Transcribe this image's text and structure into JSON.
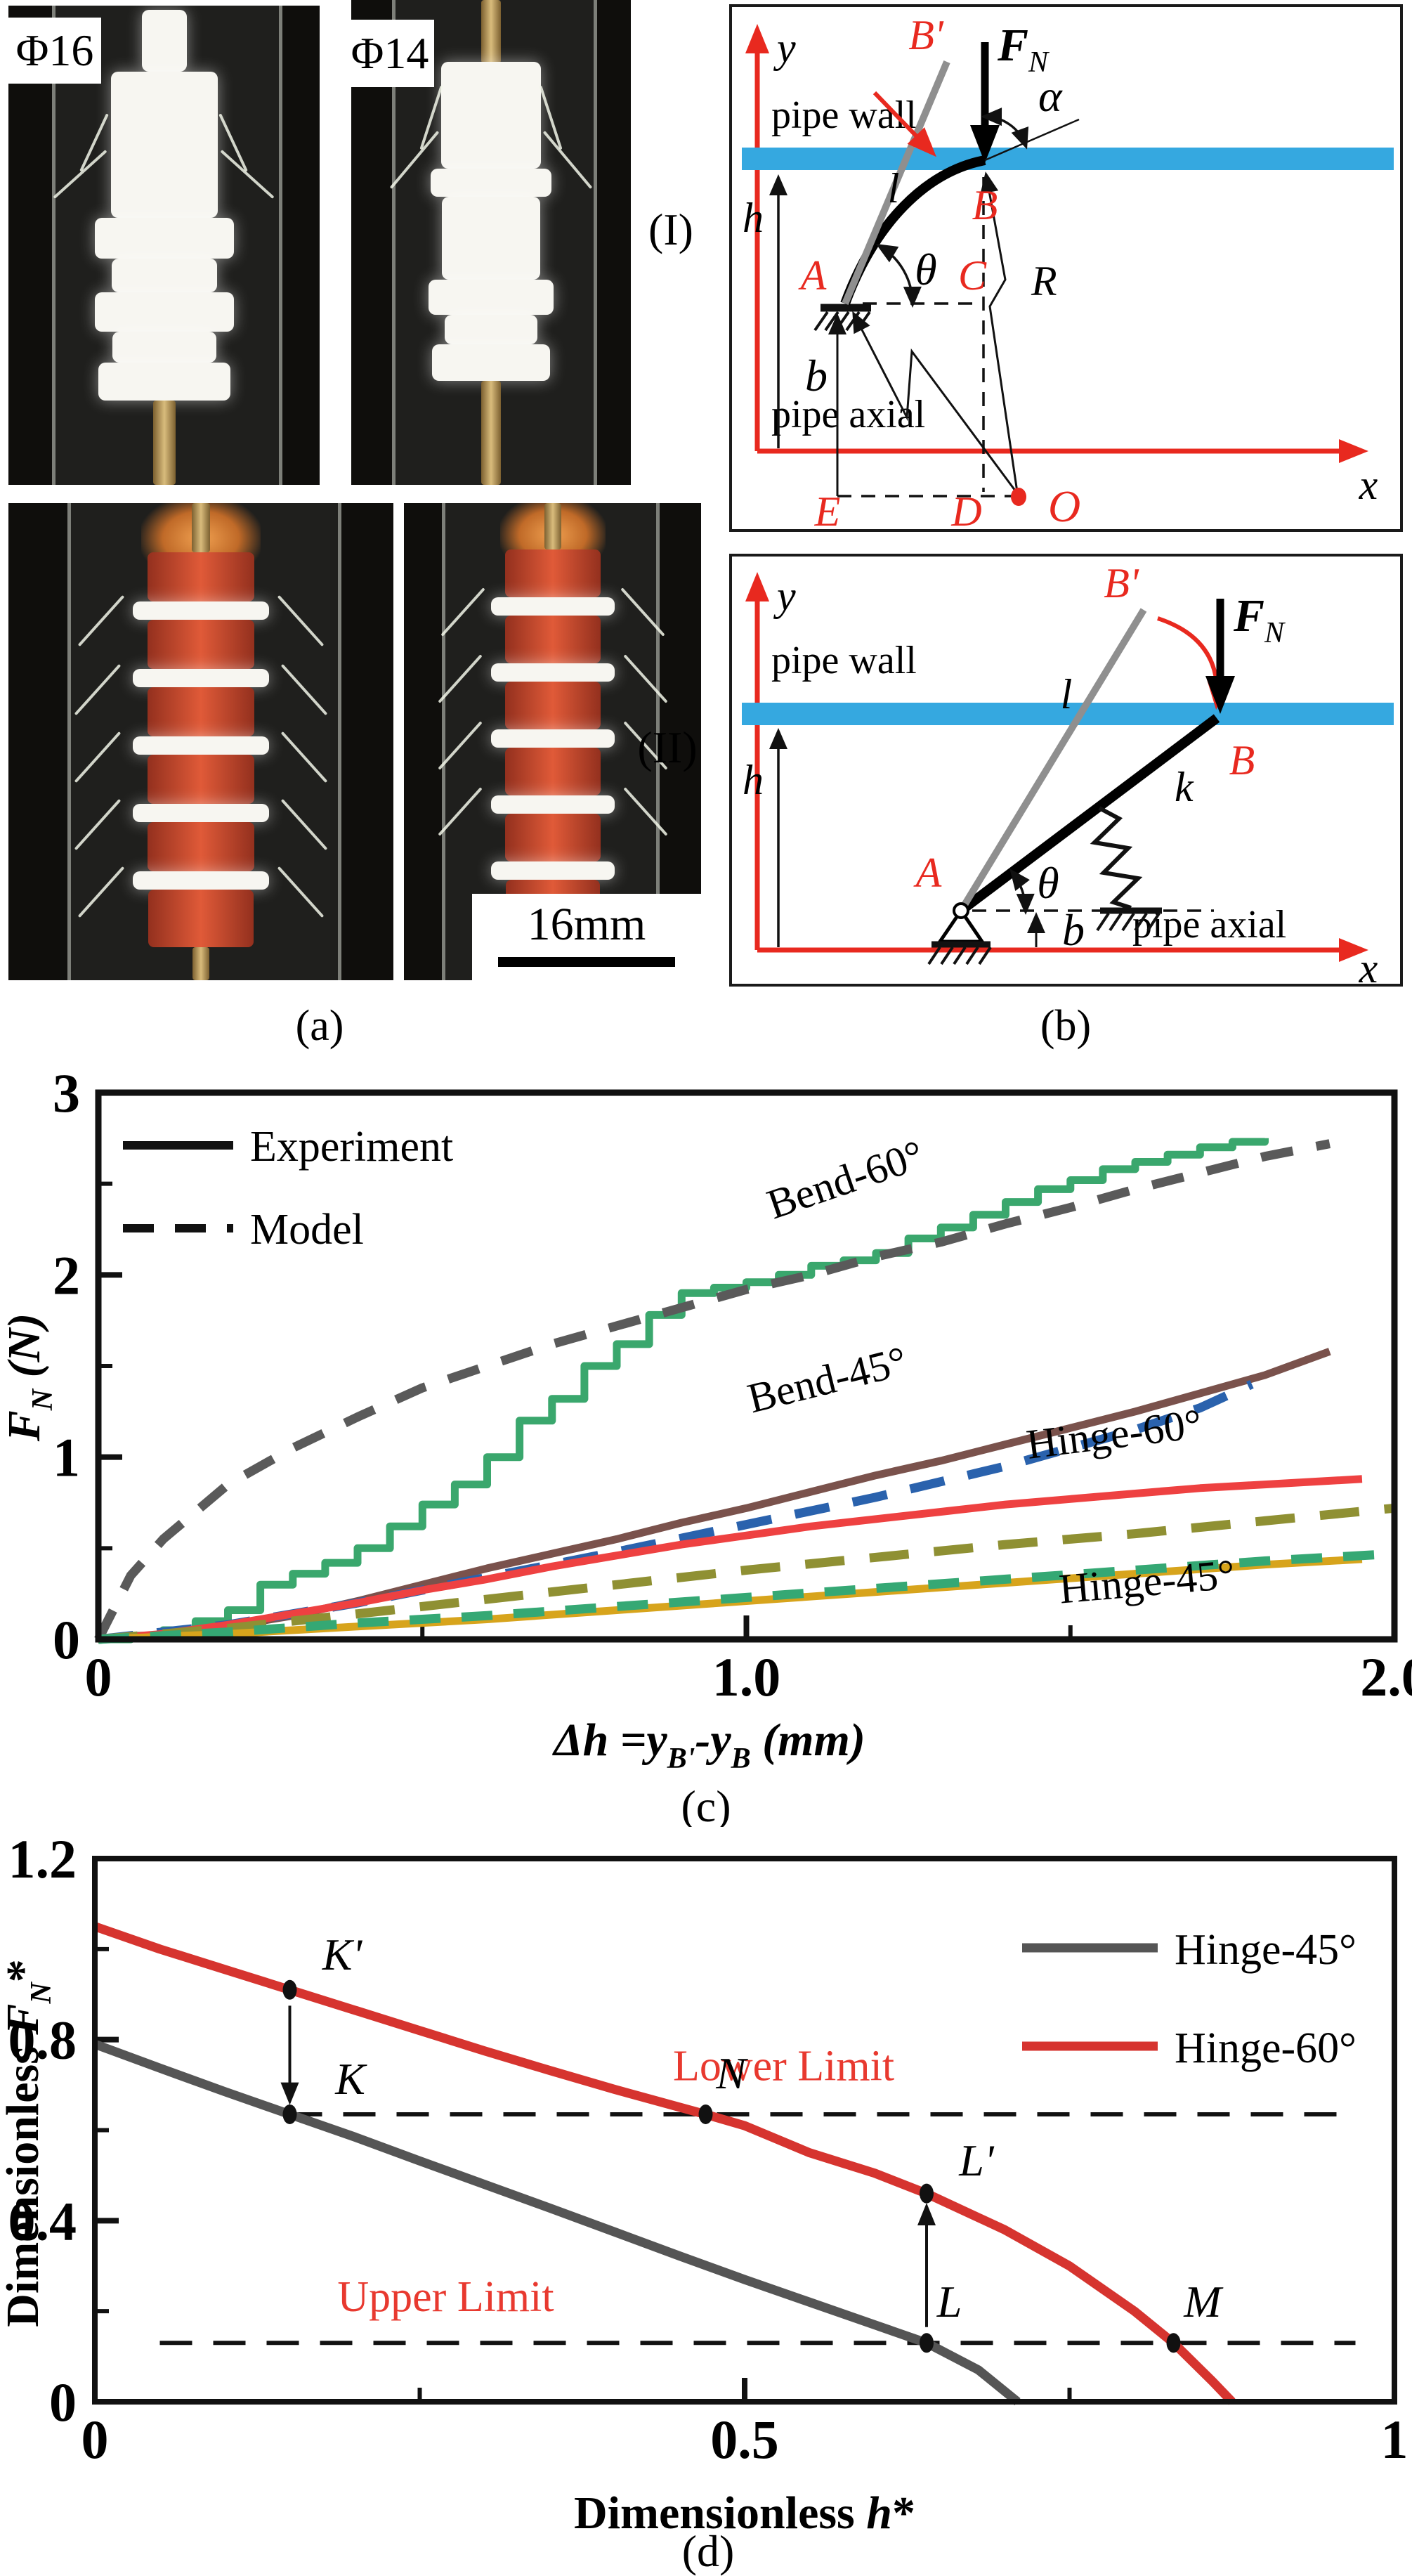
{
  "panel_a": {
    "phi16": "Φ16",
    "phi14": "Φ14",
    "scale_bar": "16mm",
    "caption": "(a)"
  },
  "panel_b": {
    "caption": "(b)",
    "I": {
      "tag": "(I)",
      "pipe_wall": "pipe wall",
      "pipe_axial": "pipe axial",
      "x": "x",
      "y": "y",
      "h": "h",
      "b": "b",
      "l": "l",
      "theta": "θ",
      "alpha": "α",
      "A": "A",
      "B": "B",
      "Bp": "B'",
      "C": "C",
      "D": "D",
      "E": "E",
      "O": "O",
      "R": "R",
      "F": "F",
      "FN": "N"
    },
    "II": {
      "tag": "(II)",
      "pipe_wall": "pipe wall",
      "pipe_axial": "pipe axial",
      "x": "x",
      "y": "y",
      "h": "h",
      "b": "b",
      "l": "l",
      "theta": "θ",
      "k": "k",
      "A": "A",
      "B": "B",
      "Bp": "B'",
      "F": "F",
      "FN": "N"
    },
    "colors": {
      "pipe_wall_blue": "#35a8e0",
      "accent_red": "#e8291f"
    }
  },
  "chart_data": [
    {
      "id": "c",
      "type": "line",
      "caption": "(c)",
      "xlabel": "Δh = yB' - yB (mm)",
      "xlabel_parts": [
        "Δh =",
        "y",
        "B'",
        "-y",
        "B",
        " (mm)"
      ],
      "ylabel": "FN (N)",
      "ylabel_parts": [
        "F",
        "N",
        " (N)"
      ],
      "xlim": [
        0,
        2
      ],
      "ylim": [
        0,
        3
      ],
      "grid": false,
      "legend_position": "top-left",
      "axes": {
        "x_ticks": [
          {
            "v": 0,
            "label": "0"
          },
          {
            "v": 1,
            "label": "1.0"
          },
          {
            "v": 2,
            "label": "2.0"
          }
        ],
        "x_minor": [
          0.5,
          1.5
        ],
        "y_ticks": [
          {
            "v": 0,
            "label": "0"
          },
          {
            "v": 1,
            "label": "1"
          },
          {
            "v": 2,
            "label": "2"
          },
          {
            "v": 3,
            "label": "3"
          }
        ],
        "y_minor": [
          0.5,
          1.5,
          2.5
        ]
      },
      "legend": [
        {
          "label": "Experiment",
          "style": "solid"
        },
        {
          "label": "Model",
          "style": "dashed"
        }
      ],
      "series": [
        {
          "name": "Bend-60-experiment",
          "color": "#3aa76d",
          "width": 11,
          "step": true,
          "points": [
            [
              0,
              0
            ],
            [
              0.05,
              0.02
            ],
            [
              0.1,
              0.05
            ],
            [
              0.15,
              0.1
            ],
            [
              0.2,
              0.16
            ],
            [
              0.25,
              0.3
            ],
            [
              0.3,
              0.36
            ],
            [
              0.35,
              0.42
            ],
            [
              0.4,
              0.5
            ],
            [
              0.45,
              0.62
            ],
            [
              0.5,
              0.74
            ],
            [
              0.55,
              0.85
            ],
            [
              0.6,
              1.0
            ],
            [
              0.65,
              1.2
            ],
            [
              0.7,
              1.32
            ],
            [
              0.75,
              1.5
            ],
            [
              0.8,
              1.62
            ],
            [
              0.85,
              1.78
            ],
            [
              0.9,
              1.9
            ],
            [
              0.95,
              1.93
            ],
            [
              1.0,
              1.96
            ],
            [
              1.05,
              2.0
            ],
            [
              1.1,
              2.05
            ],
            [
              1.15,
              2.08
            ],
            [
              1.2,
              2.12
            ],
            [
              1.25,
              2.2
            ],
            [
              1.3,
              2.26
            ],
            [
              1.35,
              2.33
            ],
            [
              1.4,
              2.4
            ],
            [
              1.45,
              2.47
            ],
            [
              1.5,
              2.52
            ],
            [
              1.55,
              2.58
            ],
            [
              1.6,
              2.62
            ],
            [
              1.65,
              2.66
            ],
            [
              1.7,
              2.7
            ],
            [
              1.75,
              2.73
            ],
            [
              1.8,
              2.75
            ]
          ]
        },
        {
          "name": "Bend-60-model",
          "color": "#5a5a5a",
          "width": 13,
          "dash": "46,34",
          "points": [
            [
              0,
              0
            ],
            [
              0.05,
              0.35
            ],
            [
              0.1,
              0.55
            ],
            [
              0.2,
              0.85
            ],
            [
              0.3,
              1.05
            ],
            [
              0.4,
              1.22
            ],
            [
              0.5,
              1.38
            ],
            [
              0.6,
              1.5
            ],
            [
              0.7,
              1.62
            ],
            [
              0.8,
              1.72
            ],
            [
              0.9,
              1.82
            ],
            [
              1.0,
              1.92
            ],
            [
              1.1,
              2.0
            ],
            [
              1.2,
              2.1
            ],
            [
              1.3,
              2.18
            ],
            [
              1.4,
              2.28
            ],
            [
              1.5,
              2.37
            ],
            [
              1.6,
              2.47
            ],
            [
              1.7,
              2.56
            ],
            [
              1.8,
              2.65
            ],
            [
              1.9,
              2.72
            ]
          ]
        },
        {
          "name": "Bend-45-experiment",
          "color": "#7a524c",
          "width": 11,
          "points": [
            [
              0,
              0
            ],
            [
              0.1,
              0.02
            ],
            [
              0.2,
              0.07
            ],
            [
              0.3,
              0.13
            ],
            [
              0.4,
              0.21
            ],
            [
              0.5,
              0.3
            ],
            [
              0.6,
              0.39
            ],
            [
              0.7,
              0.47
            ],
            [
              0.8,
              0.55
            ],
            [
              0.9,
              0.64
            ],
            [
              1.0,
              0.72
            ],
            [
              1.1,
              0.81
            ],
            [
              1.2,
              0.9
            ],
            [
              1.3,
              0.98
            ],
            [
              1.4,
              1.07
            ],
            [
              1.5,
              1.16
            ],
            [
              1.6,
              1.25
            ],
            [
              1.7,
              1.35
            ],
            [
              1.8,
              1.45
            ],
            [
              1.9,
              1.58
            ]
          ]
        },
        {
          "name": "Bend-45-model",
          "color": "#2a62ad",
          "width": 13,
          "dash": "50,34",
          "points": [
            [
              0,
              0
            ],
            [
              0.2,
              0.08
            ],
            [
              0.4,
              0.2
            ],
            [
              0.6,
              0.34
            ],
            [
              0.8,
              0.48
            ],
            [
              1.0,
              0.63
            ],
            [
              1.2,
              0.78
            ],
            [
              1.4,
              0.95
            ],
            [
              1.6,
              1.15
            ],
            [
              1.7,
              1.27
            ],
            [
              1.78,
              1.4
            ]
          ]
        },
        {
          "name": "Hinge-60-experiment",
          "color": "#ee4141",
          "width": 11,
          "points": [
            [
              0,
              0
            ],
            [
              0.1,
              0.03
            ],
            [
              0.2,
              0.08
            ],
            [
              0.3,
              0.14
            ],
            [
              0.4,
              0.2
            ],
            [
              0.5,
              0.27
            ],
            [
              0.6,
              0.33
            ],
            [
              0.7,
              0.4
            ],
            [
              0.8,
              0.46
            ],
            [
              0.9,
              0.52
            ],
            [
              1.0,
              0.57
            ],
            [
              1.1,
              0.62
            ],
            [
              1.2,
              0.66
            ],
            [
              1.3,
              0.7
            ],
            [
              1.4,
              0.74
            ],
            [
              1.5,
              0.77
            ],
            [
              1.6,
              0.8
            ],
            [
              1.7,
              0.83
            ],
            [
              1.8,
              0.85
            ],
            [
              1.9,
              0.87
            ],
            [
              1.95,
              0.88
            ]
          ]
        },
        {
          "name": "Hinge-60-model",
          "color": "#8f9033",
          "width": 13,
          "dash": "56,36",
          "points": [
            [
              0,
              0
            ],
            [
              0.2,
              0.06
            ],
            [
              0.4,
              0.14
            ],
            [
              0.6,
              0.22
            ],
            [
              0.8,
              0.3
            ],
            [
              1.0,
              0.38
            ],
            [
              1.2,
              0.45
            ],
            [
              1.4,
              0.52
            ],
            [
              1.6,
              0.58
            ],
            [
              1.8,
              0.65
            ],
            [
              2.0,
              0.72
            ]
          ]
        },
        {
          "name": "Hinge-45-experiment",
          "color": "#d7a41c",
          "width": 11,
          "points": [
            [
              0,
              0
            ],
            [
              0.2,
              0.03
            ],
            [
              0.4,
              0.07
            ],
            [
              0.6,
              0.11
            ],
            [
              0.8,
              0.16
            ],
            [
              1.0,
              0.21
            ],
            [
              1.2,
              0.26
            ],
            [
              1.4,
              0.31
            ],
            [
              1.6,
              0.36
            ],
            [
              1.8,
              0.41
            ],
            [
              1.95,
              0.44
            ]
          ]
        },
        {
          "name": "Hinge-45-model",
          "color": "#35a874",
          "width": 13,
          "dash": "44,30",
          "points": [
            [
              0,
              0
            ],
            [
              0.2,
              0.04
            ],
            [
              0.4,
              0.09
            ],
            [
              0.6,
              0.13
            ],
            [
              0.8,
              0.18
            ],
            [
              1.0,
              0.23
            ],
            [
              1.2,
              0.28
            ],
            [
              1.4,
              0.33
            ],
            [
              1.6,
              0.38
            ],
            [
              1.8,
              0.43
            ],
            [
              2.0,
              0.47
            ]
          ]
        }
      ],
      "curve_labels": [
        {
          "text": "Bend-60°",
          "x": 1.16,
          "y": 2.45,
          "rot": -19
        },
        {
          "text": "Bend-45°",
          "x": 1.13,
          "y": 1.35,
          "rot": -14
        },
        {
          "text": "Hinge-60°",
          "x": 1.57,
          "y": 1.05,
          "rot": -7
        },
        {
          "text": "Hinge-45°",
          "x": 1.62,
          "y": 0.24,
          "rot": -5
        }
      ]
    },
    {
      "id": "d",
      "type": "line",
      "caption": "(d)",
      "xlabel": "Dimensionless h*",
      "xlabel_parts": [
        "Dimensionless ",
        "h",
        "*"
      ],
      "ylabel": "Dimensionless FN*",
      "ylabel_parts": [
        "Dimensionless ",
        "F",
        "N",
        "*"
      ],
      "xlim": [
        0,
        1
      ],
      "ylim": [
        0,
        1.2
      ],
      "grid": false,
      "legend_position": "top-right",
      "axes": {
        "x_ticks": [
          {
            "v": 0,
            "label": "0"
          },
          {
            "v": 0.5,
            "label": "0.5"
          },
          {
            "v": 1,
            "label": "1"
          }
        ],
        "x_minor": [
          0.25,
          0.75
        ],
        "y_ticks": [
          {
            "v": 0,
            "label": "0"
          },
          {
            "v": 0.4,
            "label": "0.4"
          },
          {
            "v": 0.8,
            "label": "0.8"
          },
          {
            "v": 1.2,
            "label": "1.2"
          }
        ],
        "y_minor": [
          0.2,
          0.6,
          1.0
        ]
      },
      "legend": [
        {
          "label": "Hinge-45°",
          "color": "#555555"
        },
        {
          "label": "Hinge-60°",
          "color": "#d6342f"
        }
      ],
      "series": [
        {
          "name": "Hinge-45",
          "color": "#555555",
          "width": 13,
          "points": [
            [
              0,
              0.79
            ],
            [
              0.05,
              0.737
            ],
            [
              0.1,
              0.685
            ],
            [
              0.15,
              0.635
            ],
            [
              0.2,
              0.585
            ],
            [
              0.25,
              0.532
            ],
            [
              0.3,
              0.48
            ],
            [
              0.35,
              0.428
            ],
            [
              0.4,
              0.375
            ],
            [
              0.45,
              0.322
            ],
            [
              0.5,
              0.27
            ],
            [
              0.55,
              0.22
            ],
            [
              0.6,
              0.17
            ],
            [
              0.64,
              0.13
            ],
            [
              0.68,
              0.07
            ],
            [
              0.71,
              0
            ]
          ]
        },
        {
          "name": "Hinge-60",
          "color": "#d6342f",
          "width": 13,
          "points": [
            [
              0,
              1.05
            ],
            [
              0.05,
              1.0
            ],
            [
              0.1,
              0.955
            ],
            [
              0.15,
              0.91
            ],
            [
              0.2,
              0.865
            ],
            [
              0.25,
              0.82
            ],
            [
              0.3,
              0.775
            ],
            [
              0.35,
              0.732
            ],
            [
              0.4,
              0.69
            ],
            [
              0.47,
              0.635
            ],
            [
              0.5,
              0.61
            ],
            [
              0.55,
              0.55
            ],
            [
              0.6,
              0.505
            ],
            [
              0.64,
              0.46
            ],
            [
              0.7,
              0.38
            ],
            [
              0.75,
              0.3
            ],
            [
              0.8,
              0.2
            ],
            [
              0.83,
              0.13
            ],
            [
              0.86,
              0.045
            ],
            [
              0.875,
              0
            ]
          ]
        }
      ],
      "points": [
        {
          "name": "K'",
          "x": 0.15,
          "y": 0.91,
          "label_x": 0.175,
          "label_y": 0.955
        },
        {
          "name": "K",
          "x": 0.15,
          "y": 0.635,
          "label_x": 0.185,
          "label_y": 0.68
        },
        {
          "name": "N",
          "x": 0.47,
          "y": 0.635,
          "label_x": 0.478,
          "label_y": 0.692
        },
        {
          "name": "L'",
          "x": 0.64,
          "y": 0.46,
          "label_x": 0.665,
          "label_y": 0.5
        },
        {
          "name": "L",
          "x": 0.64,
          "y": 0.13,
          "label_x": 0.648,
          "label_y": 0.188
        },
        {
          "name": "M",
          "x": 0.83,
          "y": 0.13,
          "label_x": 0.838,
          "label_y": 0.188
        }
      ],
      "limit_lines": [
        {
          "label": "Lower Limit",
          "y": 0.635,
          "x1": 0.15,
          "x2": 0.97,
          "label_x": 0.53,
          "label_y": 0.71
        },
        {
          "label": "Upper Limit",
          "y": 0.13,
          "x1": 0.05,
          "x2": 0.97,
          "label_x": 0.27,
          "label_y": 0.2
        }
      ],
      "arrows": [
        {
          "x": 0.15,
          "y1": 0.875,
          "y2": 0.665
        },
        {
          "x": 0.64,
          "y1": 0.165,
          "y2": 0.43
        }
      ]
    }
  ]
}
